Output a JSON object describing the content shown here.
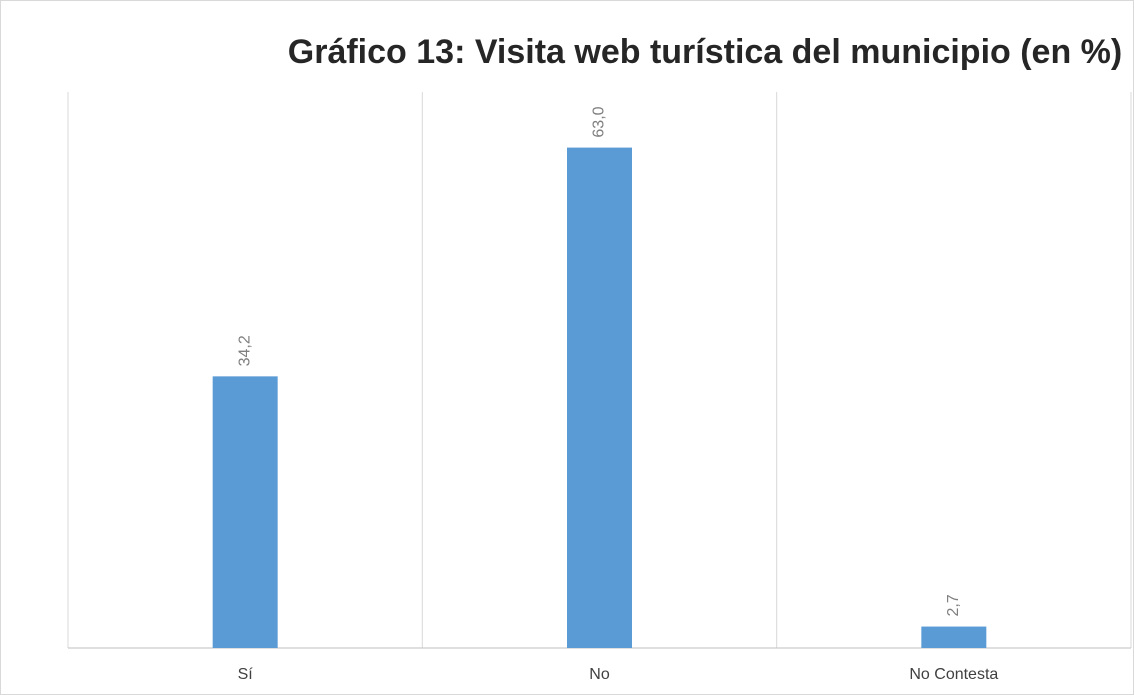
{
  "chart_data": {
    "type": "bar",
    "title": "Gráfico 13: Visita web turística del municipio (en %)",
    "categories": [
      "Sí",
      "No",
      "No Contesta"
    ],
    "values": [
      34.2,
      63.0,
      2.7
    ],
    "value_labels": [
      "34,2",
      "63,0",
      "2,7"
    ],
    "color": "#5b9bd5",
    "ylim": [
      0,
      70
    ]
  }
}
